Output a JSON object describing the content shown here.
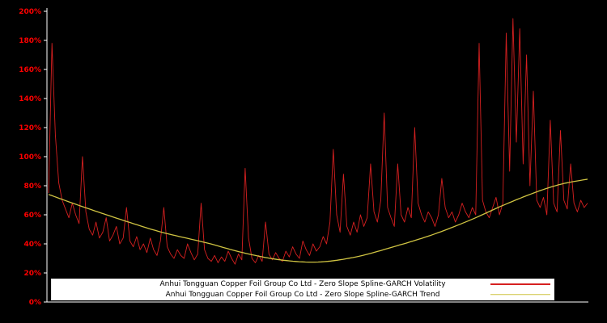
{
  "chart_data": {
    "type": "line",
    "title": "",
    "xlabel": "",
    "ylabel": "",
    "ylim": [
      0,
      200
    ],
    "background_color": "#000000",
    "axis_color": "#ffffff",
    "tick_label_color": "#ff0000",
    "grid": false,
    "legend_position": "bottom-center",
    "y_ticks": [
      0,
      20,
      40,
      60,
      80,
      100,
      120,
      140,
      160,
      180,
      200
    ],
    "y_tick_labels": [
      "0%",
      "20%",
      "40%",
      "60%",
      "80%",
      "100%",
      "120%",
      "140%",
      "160%",
      "180%",
      "200%"
    ],
    "series": [
      {
        "name": "Anhui Tongguan Copper Foil Group Co Ltd - Zero Slope Spline-GARCH Volatility",
        "color": "#d62020",
        "unit": "%",
        "values": [
          75,
          178,
          115,
          82,
          70,
          64,
          58,
          68,
          60,
          54,
          100,
          62,
          50,
          46,
          55,
          44,
          48,
          58,
          42,
          46,
          52,
          40,
          44,
          65,
          42,
          38,
          45,
          36,
          40,
          34,
          44,
          36,
          32,
          42,
          65,
          38,
          33,
          30,
          36,
          32,
          30,
          40,
          34,
          29,
          33,
          68,
          36,
          30,
          28,
          32,
          27,
          31,
          28,
          35,
          30,
          26,
          33,
          29,
          92,
          44,
          30,
          27,
          32,
          28,
          55,
          33,
          29,
          34,
          30,
          28,
          35,
          31,
          38,
          33,
          30,
          42,
          36,
          32,
          40,
          35,
          38,
          45,
          40,
          55,
          105,
          60,
          48,
          88,
          52,
          46,
          55,
          48,
          60,
          52,
          58,
          95,
          62,
          55,
          70,
          130,
          65,
          58,
          52,
          95,
          60,
          55,
          65,
          58,
          120,
          68,
          60,
          55,
          62,
          58,
          52,
          60,
          85,
          65,
          58,
          62,
          55,
          60,
          68,
          62,
          58,
          65,
          60,
          178,
          70,
          62,
          58,
          65,
          72,
          60,
          68,
          185,
          90,
          195,
          110,
          188,
          95,
          170,
          80,
          145,
          70,
          65,
          72,
          60,
          125,
          68,
          62,
          118,
          70,
          64,
          95,
          68,
          62,
          70,
          65,
          68
        ]
      },
      {
        "name": "Anhui Tongguan Copper Foil Group Co Ltd - Zero Slope Spline-GARCH Trend",
        "color": "#cfc342",
        "unit": "%",
        "keypoints": [
          [
            0.0,
            74
          ],
          [
            0.06,
            66
          ],
          [
            0.14,
            56
          ],
          [
            0.21,
            48
          ],
          [
            0.29,
            41
          ],
          [
            0.36,
            34
          ],
          [
            0.43,
            29
          ],
          [
            0.5,
            27.5
          ],
          [
            0.57,
            31
          ],
          [
            0.64,
            38
          ],
          [
            0.71,
            46
          ],
          [
            0.78,
            56
          ],
          [
            0.84,
            66
          ],
          [
            0.9,
            75
          ],
          [
            0.95,
            81
          ],
          [
            1.0,
            84.5
          ]
        ]
      }
    ]
  }
}
